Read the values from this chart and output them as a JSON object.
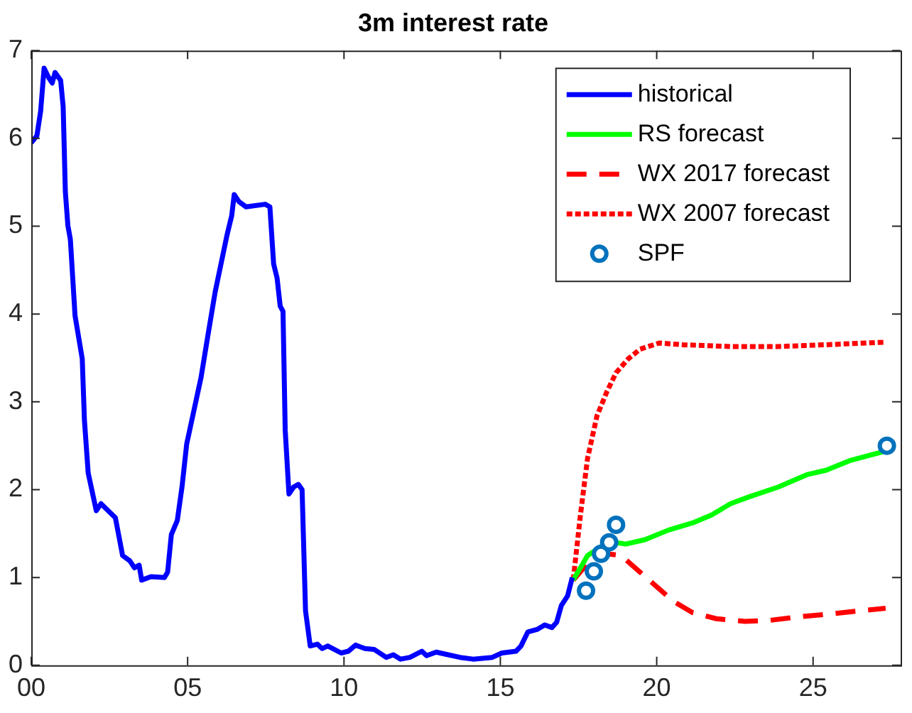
{
  "chart_data": {
    "type": "line",
    "title": "3m interest rate",
    "xlim": [
      0,
      27.8
    ],
    "xticks": [
      {
        "value": 0,
        "label": "00"
      },
      {
        "value": 5,
        "label": "05"
      },
      {
        "value": 10,
        "label": "10"
      },
      {
        "value": 15,
        "label": "15"
      },
      {
        "value": 20,
        "label": "20"
      },
      {
        "value": 25,
        "label": "25"
      }
    ],
    "ylim": [
      0,
      7
    ],
    "yticks": [
      0,
      1,
      2,
      3,
      4,
      5,
      6,
      7
    ],
    "grid": false,
    "legend": "top right",
    "series": [
      {
        "name": "historical",
        "color": "#0000ff",
        "line_style": "solid",
        "marker": "none",
        "x": [
          0,
          0.18,
          0.3,
          0.41,
          0.56,
          0.67,
          0.76,
          0.94,
          1.02,
          1.09,
          1.17,
          1.25,
          1.4,
          1.63,
          1.7,
          1.82,
          2.08,
          2.23,
          2.46,
          2.69,
          2.92,
          3.15,
          3.3,
          3.45,
          3.53,
          3.83,
          4.26,
          4.36,
          4.48,
          4.67,
          4.82,
          4.97,
          5.2,
          5.43,
          5.65,
          5.88,
          6.26,
          6.41,
          6.49,
          6.64,
          6.87,
          7.48,
          7.63,
          7.75,
          7.86,
          7.96,
          8.05,
          8.12,
          8.24,
          8.39,
          8.54,
          8.66,
          8.77,
          8.92,
          9.15,
          9.3,
          9.48,
          9.91,
          10.14,
          10.37,
          10.67,
          10.97,
          11.35,
          11.58,
          11.81,
          12.11,
          12.49,
          12.64,
          12.95,
          13.33,
          13.71,
          14.13,
          14.74,
          15.05,
          15.5,
          15.66,
          15.88,
          16.19,
          16.42,
          16.65,
          16.8,
          16.95,
          17.15,
          17.3
        ],
        "values": [
          5.95,
          6.03,
          6.31,
          6.8,
          6.69,
          6.63,
          6.75,
          6.66,
          6.36,
          5.39,
          5.01,
          4.85,
          3.98,
          3.49,
          2.79,
          2.19,
          1.76,
          1.84,
          1.76,
          1.68,
          1.25,
          1.19,
          1.11,
          1.14,
          0.97,
          1.01,
          1.0,
          1.06,
          1.49,
          1.65,
          2.03,
          2.52,
          2.9,
          3.28,
          3.76,
          4.25,
          4.9,
          5.12,
          5.36,
          5.28,
          5.22,
          5.25,
          5.22,
          4.57,
          4.41,
          4.09,
          4.03,
          2.68,
          1.95,
          2.03,
          2.06,
          2.0,
          0.62,
          0.22,
          0.24,
          0.19,
          0.22,
          0.14,
          0.16,
          0.23,
          0.19,
          0.18,
          0.09,
          0.12,
          0.07,
          0.09,
          0.16,
          0.11,
          0.15,
          0.12,
          0.09,
          0.07,
          0.09,
          0.14,
          0.16,
          0.22,
          0.38,
          0.41,
          0.46,
          0.43,
          0.49,
          0.68,
          0.79,
          1.0
        ]
      },
      {
        "name": "RS forecast",
        "color": "#00ff00",
        "line_style": "solid",
        "marker": "none",
        "x": [
          17.33,
          17.79,
          18.48,
          19.01,
          19.62,
          20.38,
          21.14,
          21.75,
          22.36,
          22.97,
          23.89,
          24.8,
          25.41,
          26.17,
          27.32
        ],
        "values": [
          0.97,
          1.25,
          1.41,
          1.38,
          1.43,
          1.54,
          1.62,
          1.71,
          1.84,
          1.92,
          2.03,
          2.17,
          2.22,
          2.33,
          2.44
        ]
      },
      {
        "name": "WX 2017 forecast",
        "color": "#ff0000",
        "line_style": "dashed",
        "marker": "none",
        "x": [
          17.33,
          17.79,
          18.4,
          18.86,
          19.31,
          19.92,
          20.53,
          21.14,
          21.91,
          22.82,
          23.58,
          24.5,
          25.41,
          26.48,
          27.32
        ],
        "values": [
          0.97,
          1.16,
          1.27,
          1.25,
          1.11,
          0.92,
          0.73,
          0.6,
          0.53,
          0.5,
          0.51,
          0.55,
          0.58,
          0.62,
          0.65
        ]
      },
      {
        "name": "WX 2007 forecast",
        "color": "#ff0000",
        "line_style": "dotted",
        "marker": "none",
        "x": [
          17.33,
          17.56,
          17.79,
          18.09,
          18.4,
          18.7,
          19.09,
          19.47,
          20.08,
          20.84,
          22.36,
          23.89,
          25.41,
          27.32
        ],
        "values": [
          0.97,
          1.71,
          2.36,
          2.84,
          3.11,
          3.33,
          3.49,
          3.6,
          3.67,
          3.65,
          3.63,
          3.63,
          3.65,
          3.68
        ]
      },
      {
        "name": "SPF",
        "type": "scatter",
        "color": "#0072bd",
        "marker": "circle",
        "x": [
          17.74,
          17.99,
          18.22,
          18.48,
          18.7,
          27.36
        ],
        "values": [
          0.85,
          1.07,
          1.27,
          1.4,
          1.6,
          2.5
        ]
      }
    ]
  }
}
